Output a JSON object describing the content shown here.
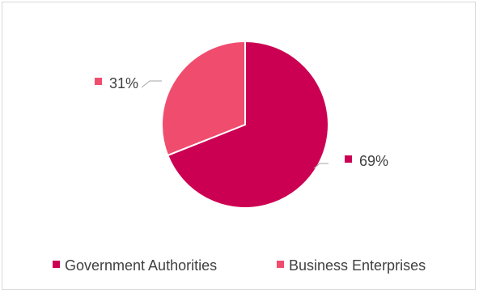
{
  "chart_data": {
    "type": "pie",
    "title": "",
    "slices": [
      {
        "name": "Government Authorities",
        "value": 69,
        "label": "69%",
        "color": "#cc0052"
      },
      {
        "name": "Business Enterprises",
        "value": 31,
        "label": "31%",
        "color": "#f04d6e"
      }
    ],
    "legend": {
      "position": "bottom"
    }
  }
}
